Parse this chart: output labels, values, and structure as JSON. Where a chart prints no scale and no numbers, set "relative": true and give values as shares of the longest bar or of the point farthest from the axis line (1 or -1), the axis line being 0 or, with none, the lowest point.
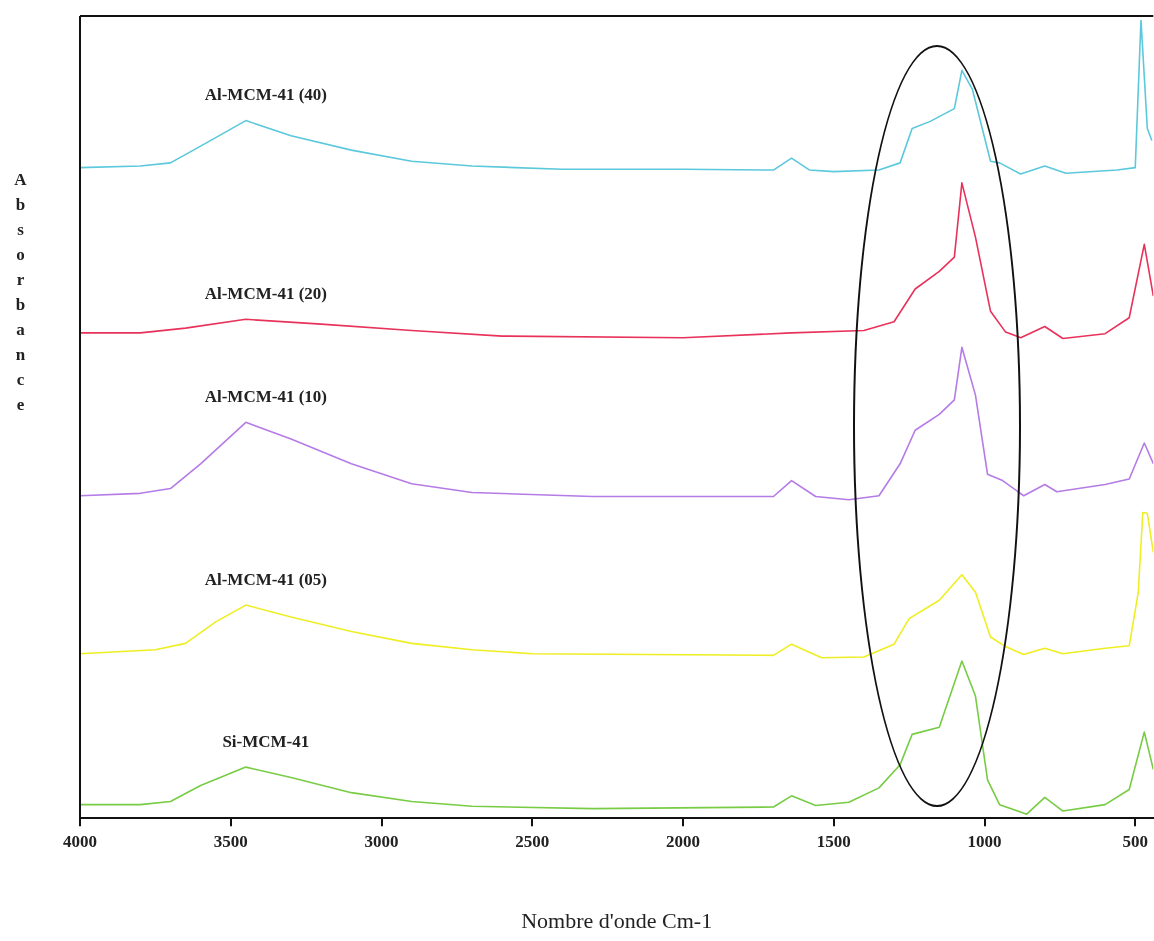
{
  "chart_data": {
    "type": "line",
    "xlabel": "Nombre d'onde Cm-1",
    "ylabel": "Absorbance",
    "relative": true,
    "xlim": [
      4000,
      440
    ],
    "xticks": [
      4000,
      3500,
      3000,
      2500,
      2000,
      1500,
      1000,
      500
    ],
    "legend": false,
    "grid": false,
    "series": [
      {
        "name": "Al-MCM-41 (40)",
        "color": "#5bc8dc",
        "x": [
          4000,
          3800,
          3700,
          3600,
          3450,
          3300,
          3100,
          2900,
          2700,
          2400,
          2000,
          1700,
          1640,
          1580,
          1500,
          1350,
          1280,
          1240,
          1180,
          1100,
          1075,
          1040,
          980,
          950,
          880,
          800,
          730,
          560,
          500,
          481,
          460,
          445
        ],
        "values": [
          0.815,
          0.817,
          0.821,
          0.842,
          0.874,
          0.855,
          0.837,
          0.823,
          0.817,
          0.813,
          0.813,
          0.812,
          0.827,
          0.812,
          0.81,
          0.812,
          0.821,
          0.864,
          0.873,
          0.889,
          0.937,
          0.913,
          0.823,
          0.821,
          0.807,
          0.817,
          0.808,
          0.812,
          0.815,
          1.0,
          0.864,
          0.849
        ]
      },
      {
        "name": "Al-MCM-41 (20)",
        "color": "#e8325a",
        "x": [
          4000,
          3800,
          3650,
          3450,
          3200,
          2900,
          2600,
          2000,
          1640,
          1400,
          1300,
          1230,
          1150,
          1100,
          1075,
          1030,
          980,
          930,
          880,
          800,
          740,
          600,
          520,
          470,
          440
        ],
        "values": [
          0.608,
          0.608,
          0.614,
          0.625,
          0.619,
          0.611,
          0.604,
          0.602,
          0.608,
          0.611,
          0.622,
          0.663,
          0.685,
          0.703,
          0.796,
          0.728,
          0.635,
          0.609,
          0.602,
          0.616,
          0.601,
          0.607,
          0.627,
          0.719,
          0.654
        ]
      },
      {
        "name": "Al-MCM-41 (10)",
        "color": "#b57be6",
        "x": [
          4000,
          3800,
          3700,
          3600,
          3450,
          3300,
          3100,
          2900,
          2700,
          2300,
          1700,
          1640,
          1560,
          1450,
          1350,
          1280,
          1230,
          1150,
          1100,
          1075,
          1030,
          990,
          940,
          870,
          800,
          760,
          600,
          520,
          470,
          440
        ],
        "values": [
          0.404,
          0.407,
          0.413,
          0.444,
          0.496,
          0.475,
          0.444,
          0.419,
          0.408,
          0.403,
          0.403,
          0.423,
          0.403,
          0.399,
          0.404,
          0.444,
          0.486,
          0.506,
          0.524,
          0.59,
          0.53,
          0.431,
          0.423,
          0.404,
          0.418,
          0.409,
          0.418,
          0.425,
          0.47,
          0.444
        ]
      },
      {
        "name": "Al-MCM-41 (05)",
        "color": "#eeee22",
        "x": [
          4000,
          3750,
          3650,
          3550,
          3450,
          3300,
          3100,
          2900,
          2700,
          2500,
          1700,
          1640,
          1540,
          1400,
          1300,
          1250,
          1150,
          1075,
          1030,
          980,
          930,
          870,
          800,
          740,
          600,
          520,
          490,
          475,
          460,
          440
        ],
        "values": [
          0.206,
          0.211,
          0.219,
          0.246,
          0.267,
          0.252,
          0.234,
          0.219,
          0.211,
          0.206,
          0.204,
          0.218,
          0.201,
          0.202,
          0.218,
          0.25,
          0.273,
          0.305,
          0.283,
          0.227,
          0.215,
          0.205,
          0.213,
          0.206,
          0.213,
          0.216,
          0.283,
          0.383,
          0.382,
          0.333
        ]
      },
      {
        "name": "Si-MCM-41",
        "color": "#77cc44",
        "x": [
          4000,
          3800,
          3700,
          3600,
          3450,
          3300,
          3100,
          2900,
          2700,
          2300,
          1700,
          1640,
          1560,
          1450,
          1350,
          1280,
          1240,
          1150,
          1075,
          1030,
          990,
          950,
          860,
          800,
          740,
          600,
          520,
          470,
          440
        ],
        "values": [
          0.017,
          0.017,
          0.021,
          0.041,
          0.064,
          0.051,
          0.032,
          0.021,
          0.015,
          0.012,
          0.014,
          0.028,
          0.016,
          0.02,
          0.038,
          0.067,
          0.105,
          0.114,
          0.197,
          0.153,
          0.048,
          0.017,
          0.005,
          0.026,
          0.009,
          0.017,
          0.036,
          0.108,
          0.061
        ]
      }
    ]
  }
}
